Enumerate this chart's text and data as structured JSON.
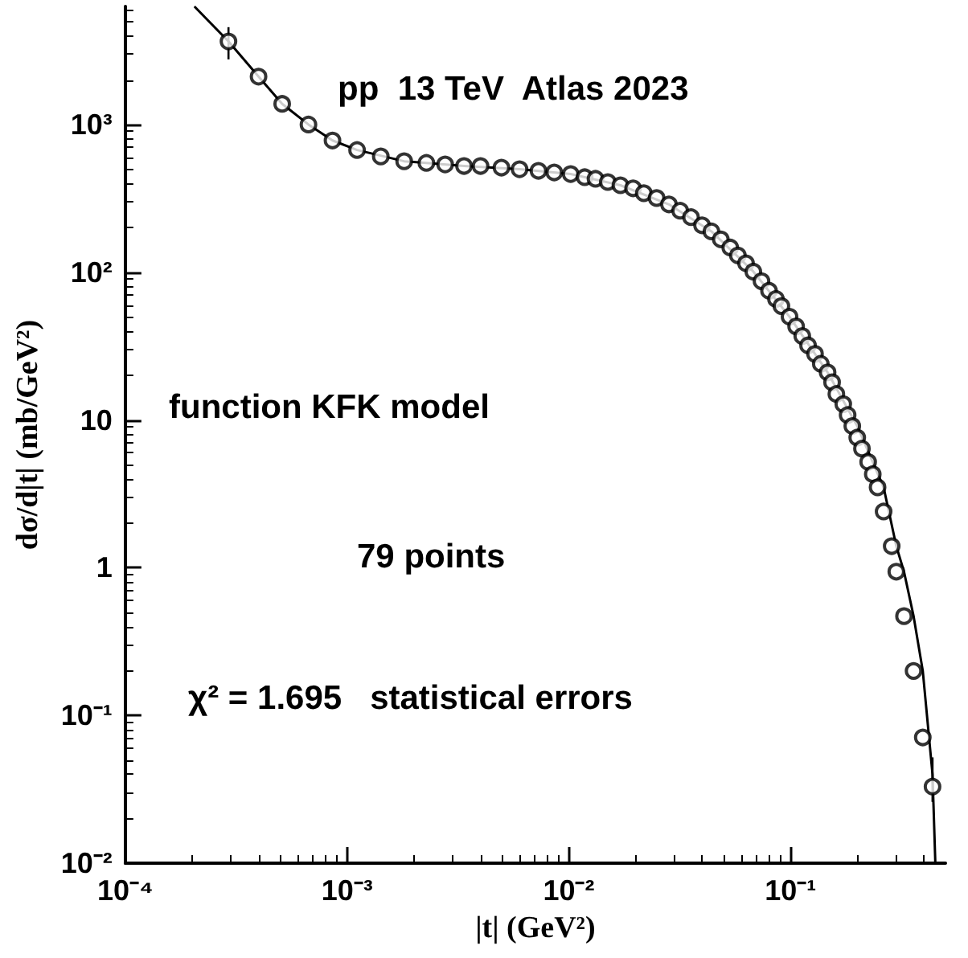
{
  "chart_data": {
    "type": "scatter",
    "xlabel": "|t| (GeV²)",
    "ylabel": "dσ/d|t| (mb/GeV²)",
    "annotations": [
      "pp  13 TeV  Atlas 2023",
      "function KFK model",
      "79 points",
      "χ² = 1.695   statistical errors"
    ],
    "log": "xy",
    "grid": false,
    "marker": "circle",
    "xlim": [
      0.0001,
      0.5
    ],
    "ylim": [
      0.01,
      6300
    ],
    "xticks": [
      {
        "value": 0.0001,
        "label": "10⁻⁴"
      },
      {
        "value": 0.001,
        "label": "10⁻³"
      },
      {
        "value": 0.01,
        "label": "10⁻²"
      },
      {
        "value": 0.1,
        "label": "10⁻¹"
      }
    ],
    "yticks": [
      {
        "value": 0.01,
        "label": "10⁻²"
      },
      {
        "value": 0.1,
        "label": "10⁻¹"
      },
      1,
      10,
      {
        "value": 100,
        "label": "10²"
      },
      {
        "value": 1000,
        "label": "10³"
      }
    ],
    "series": [
      {
        "color": "#000000",
        "x": [
          0.000292,
          0.000399,
          0.00051,
          0.00067,
          0.00086,
          0.00111,
          0.00142,
          0.00181,
          0.00228,
          0.00277,
          0.00337,
          0.004,
          0.00497,
          0.006,
          0.0073,
          0.0086,
          0.0102,
          0.0118,
          0.0132,
          0.015,
          0.0171,
          0.0195,
          0.0218,
          0.0249,
          0.0283,
          0.0318,
          0.0356,
          0.0399,
          0.044,
          0.0485,
          0.0535,
          0.0579,
          0.063,
          0.068,
          0.074,
          0.08,
          0.086,
          0.091,
          0.099,
          0.106,
          0.113,
          0.12,
          0.129,
          0.137,
          0.147,
          0.154,
          0.161,
          0.173,
          0.181,
          0.19,
          0.2,
          0.21,
          0.224,
          0.235,
          0.247,
          0.263,
          0.286,
          0.3,
          0.325,
          0.359,
          0.395,
          0.437
        ],
        "values": [
          3650,
          2110,
          1380,
          1000,
          780,
          672,
          608,
          564,
          550,
          537,
          524,
          524,
          511,
          498,
          486,
          474,
          462,
          440,
          429,
          408,
          388,
          370,
          343,
          318,
          288,
          261,
          236,
          208,
          189,
          167,
          147,
          130,
          115,
          101,
          87,
          75,
          66,
          59,
          50,
          43,
          37,
          32,
          28,
          24,
          21,
          18,
          15,
          12.8,
          10.8,
          9.1,
          7.6,
          6.4,
          5.2,
          4.3,
          3.5,
          2.4,
          1.4,
          0.94,
          0.47,
          0.2,
          0.071,
          0.033
        ],
        "errors": [
          [
            2760,
            4560
          ],
          null,
          null,
          null,
          null,
          null,
          null,
          null,
          null,
          null,
          null,
          null,
          null,
          null,
          null,
          null,
          null,
          null,
          null,
          null,
          null,
          null,
          null,
          null,
          null,
          null,
          null,
          null,
          null,
          null,
          null,
          null,
          null,
          null,
          null,
          null,
          null,
          null,
          null,
          null,
          null,
          null,
          null,
          null,
          null,
          null,
          null,
          null,
          null,
          null,
          null,
          null,
          null,
          null,
          null,
          null,
          null,
          null,
          null,
          null,
          null,
          [
            0.026,
            0.052
          ]
        ]
      },
      {
        "type": "line",
        "color": "#000000",
        "marker": "none",
        "line_style": "solid",
        "x": [
          0.000205,
          0.000292,
          0.000399,
          0.00051,
          0.00067,
          0.00086,
          0.00111,
          0.00181,
          0.00337,
          0.006,
          0.0102,
          0.0171,
          0.0283,
          0.044,
          0.068,
          0.099,
          0.147,
          0.2,
          0.263,
          0.3,
          0.325,
          0.359,
          0.395,
          0.437,
          0.45
        ],
        "values": [
          6300,
          3650,
          2110,
          1380,
          1000,
          780,
          672,
          564,
          524,
          498,
          462,
          388,
          288,
          189,
          101,
          50,
          21,
          9.1,
          3.5,
          1.4,
          0.94,
          0.47,
          0.2,
          0.04,
          0.01
        ]
      }
    ]
  }
}
